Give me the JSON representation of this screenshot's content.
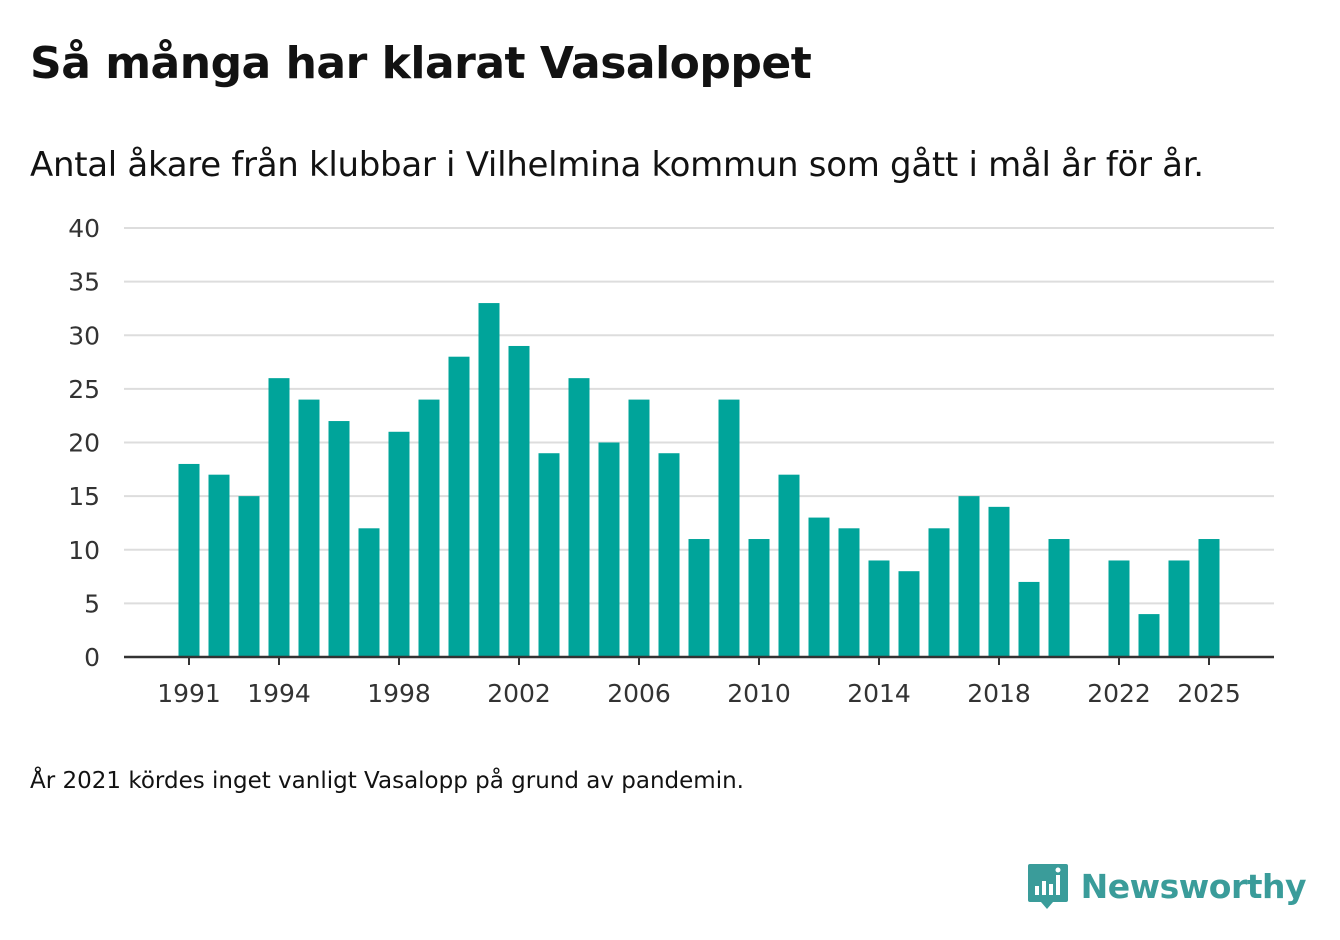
{
  "title": "Så många har klarat Vasaloppet",
  "subtitle": "Antal åkare från klubbar i Vilhelmina kommun som gått i mål år för år.",
  "note": "År 2021 kördes inget vanligt Vasalopp på grund av pandemin.",
  "brand": {
    "name": "Newsworthy",
    "icon": "newsworthy-logo-icon",
    "color": "#3a9c9a"
  },
  "colors": {
    "bar": "#00a49a",
    "grid": "#dddddd",
    "axis": "#333333",
    "text": "#333333"
  },
  "chart_data": {
    "type": "bar",
    "title": "Så många har klarat Vasaloppet",
    "xlabel": "",
    "ylabel": "",
    "ylim": [
      0,
      40
    ],
    "yticks": [
      0,
      5,
      10,
      15,
      20,
      25,
      30,
      35,
      40
    ],
    "xticks": [
      "1991",
      "1994",
      "1998",
      "2002",
      "2006",
      "2010",
      "2014",
      "2018",
      "2022",
      "2025"
    ],
    "grid": true,
    "categories": [
      "1991",
      "1992",
      "1993",
      "1994",
      "1995",
      "1996",
      "1997",
      "1998",
      "1999",
      "2000",
      "2001",
      "2002",
      "2003",
      "2004",
      "2005",
      "2006",
      "2007",
      "2008",
      "2009",
      "2010",
      "2011",
      "2012",
      "2013",
      "2014",
      "2015",
      "2016",
      "2017",
      "2018",
      "2019",
      "2020",
      "2021",
      "2022",
      "2023",
      "2024",
      "2025"
    ],
    "values": [
      18,
      17,
      15,
      26,
      24,
      22,
      12,
      21,
      24,
      28,
      33,
      29,
      19,
      26,
      20,
      24,
      19,
      11,
      24,
      11,
      17,
      13,
      12,
      9,
      8,
      12,
      15,
      14,
      7,
      11,
      null,
      9,
      4,
      9,
      11
    ]
  }
}
